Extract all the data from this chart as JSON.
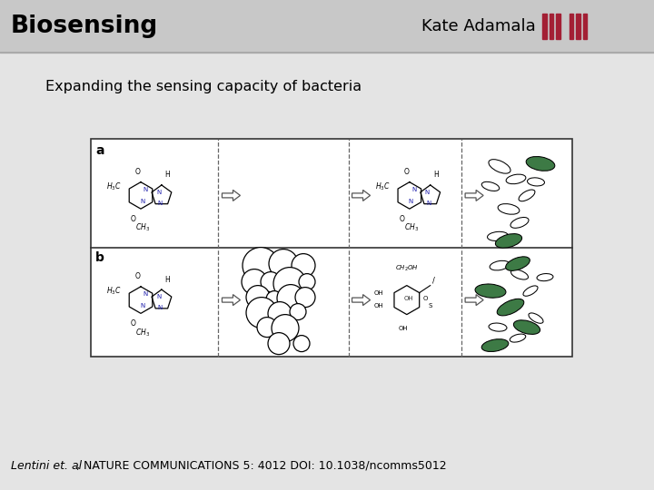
{
  "title": "Biosensing",
  "author": "Kate Adamala",
  "subtitle": "Expanding the sensing capacity of bacteria",
  "citation": "Lentini et. al, NATURE COMMUNICATIONS 5: 4012 DOI: 10.1038/ncomms5012",
  "body_bg": "#e4e4e4",
  "header_bg": "#c8c8c8",
  "title_color": "#000000",
  "author_color": "#000000",
  "subtitle_color": "#000000",
  "citation_color": "#000000",
  "mit_red": "#a31f34",
  "green_bacteria": "#3d7a45",
  "box_border": "#333333",
  "box_bg": "#ffffff"
}
